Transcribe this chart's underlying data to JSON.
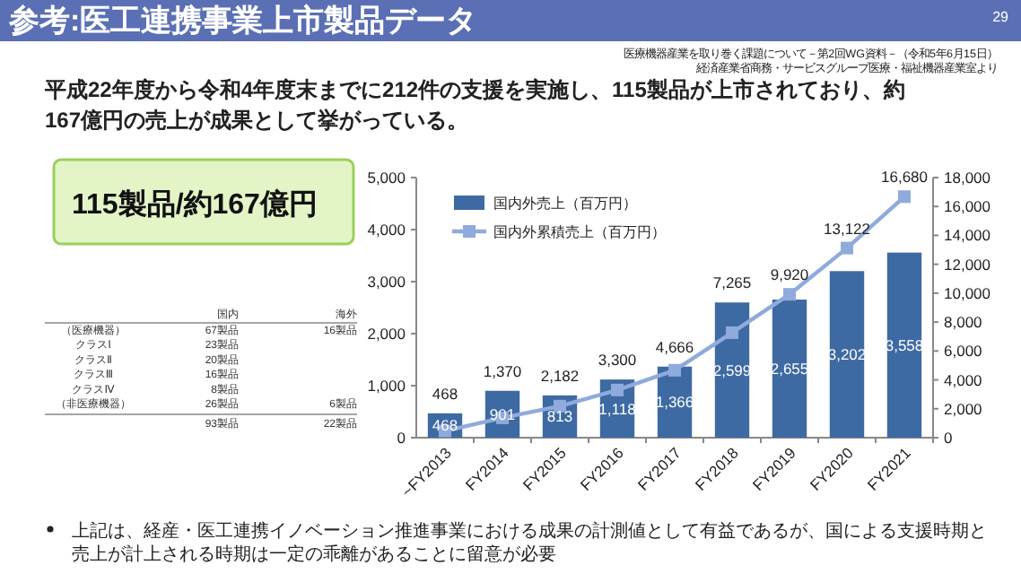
{
  "chart_data": [
    {
      "type": "bar",
      "title": "参考:医工連携事業上市製品データ",
      "subtitle": "平成22年度から令和4年度末までに212件の支援を実施し、115製品が上市されており、約167億円の売上が成果として挙がっている。",
      "annotations": [
        "29",
        "医療機器産業を取り巻く課題について－第2回WG資料－（令和5年6月15日）",
        "経済産業省商務・サービスグループ医療・福祉機器産業室より",
        "上記は、経産・医工連携イノベーション推進事業における成果の計測値として有益であるが、国による支援時期と売上が計上される時期は一定の乖離があることに留意が必要"
      ],
      "categories": [
        "~FY2013",
        "FY2014",
        "FY2015",
        "FY2016",
        "FY2017",
        "FY2018",
        "FY2019",
        "FY2020",
        "FY2021"
      ],
      "series": [
        {
          "name": "国内外売上（百万円）",
          "type": "bar",
          "color": "#3e6aa3",
          "values": [
            468,
            901,
            813,
            1118,
            1366,
            2599,
            2655,
            3202,
            3558
          ],
          "value_labels": [
            "468",
            "901",
            "813",
            "1,118",
            "1,366",
            "2,599",
            "2,655",
            "3,202",
            "3,558"
          ]
        },
        {
          "name": "国内外累積売上（百万円）",
          "type": "line",
          "axis": "y2",
          "color": "#8faadc",
          "values": [
            468,
            1370,
            2182,
            3300,
            4666,
            7265,
            9920,
            13122,
            16680
          ],
          "value_labels": [
            "468",
            "1,370",
            "2,182",
            "3,300",
            "4,666",
            "7,265",
            "9,920",
            "13,122",
            "16,680"
          ]
        }
      ],
      "ylim": [
        0,
        5000
      ],
      "yticks": [
        0,
        {
          "value": 1000,
          "label": "1,000"
        },
        {
          "value": 2000,
          "label": "2,000"
        },
        {
          "value": 3000,
          "label": "3,000"
        },
        {
          "value": 4000,
          "label": "4,000"
        },
        {
          "value": 5000,
          "label": "5,000"
        }
      ],
      "y2lim": [
        0,
        18000
      ],
      "y2ticks": [
        0,
        {
          "value": 2000,
          "label": "2,000"
        },
        {
          "value": 4000,
          "label": "4,000"
        },
        {
          "value": 6000,
          "label": "6,000"
        },
        {
          "value": 8000,
          "label": "8,000"
        },
        {
          "value": 10000,
          "label": "10,000"
        },
        {
          "value": 12000,
          "label": "12,000"
        },
        {
          "value": 14000,
          "label": "14,000"
        },
        {
          "value": 16000,
          "label": "16,000"
        },
        {
          "value": 18000,
          "label": "18,000"
        }
      ],
      "legend": "top left",
      "marker": "square",
      "grid": false
    },
    {
      "type": "other",
      "title": "115製品/約167億円",
      "annotations": [
        null,
        "国内",
        "海外",
        "（医療機器）",
        "67製品",
        "16製品",
        "クラスⅠ",
        "23製品",
        null,
        "クラスⅡ",
        "20製品",
        null,
        "クラスⅢ",
        "16製品",
        null,
        "クラスⅣ",
        "8製品",
        null,
        "（非医療機器）",
        "26製品",
        "6製品",
        null,
        "93製品",
        "22製品"
      ]
    }
  ]
}
